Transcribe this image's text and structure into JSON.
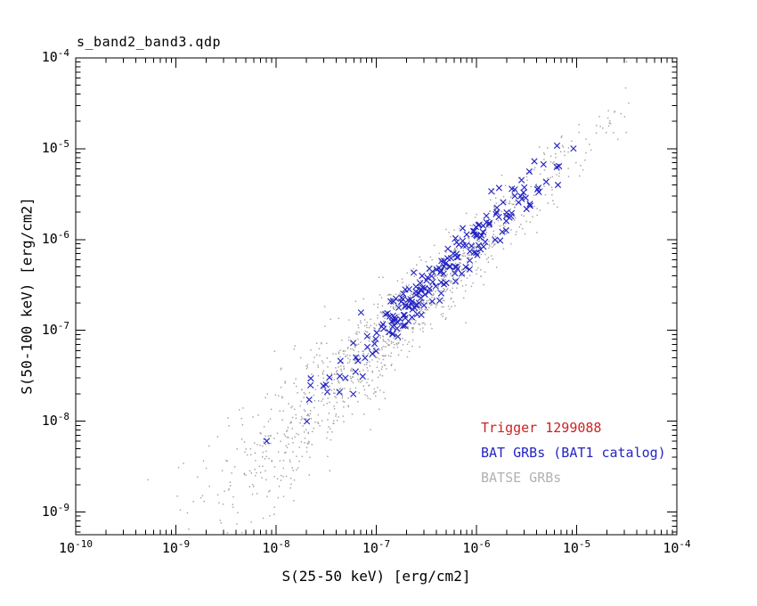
{
  "chart_data": {
    "type": "scatter",
    "title": "s_band2_band3.qdp",
    "xlabel": "S(25-50 keV) [erg/cm2]",
    "ylabel": "S(50-100 keV) [erg/cm2]",
    "x_scale": "log",
    "y_scale": "log",
    "xlim_log": [
      -10,
      -4
    ],
    "ylim_log": [
      -9.25,
      -4
    ],
    "x_ticks_exp": [
      -10,
      -9,
      -8,
      -7,
      -6,
      -5,
      -4
    ],
    "y_ticks_exp": [
      -4,
      -5,
      -6,
      -7,
      -8,
      -9
    ],
    "grid": false,
    "frame_color": "#000000",
    "legend_position": "lower-right-inside",
    "legend": [
      {
        "label": "Trigger 1299088",
        "color": "#cc2222"
      },
      {
        "label": "BAT GRBs (BAT1 catalog)",
        "color": "#2525c4"
      },
      {
        "label": "BATSE GRBs",
        "color": "#b2b2b2"
      }
    ],
    "series": [
      {
        "name": "BATSE GRBs",
        "marker": "dot",
        "color": "#a3a3a3",
        "count": 1250,
        "seed": 20481,
        "logx_center": -6.85,
        "logx_sd": 0.95,
        "logx_min": -9.6,
        "logx_max": -4.4,
        "trend_pivot_x": -6.6,
        "trend_pivot_y": -6.72,
        "trend_slope": 1.07,
        "scatter": 0.21,
        "scatter_grow": 0.11,
        "scatter_ref": -6.5
      },
      {
        "name": "BAT GRBs (BAT1 catalog)",
        "marker": "x",
        "color": "#2525c4",
        "count": 215,
        "seed": 9157,
        "logx_center": -6.3,
        "logx_sd": 0.58,
        "logx_min": -8.45,
        "logx_max": -5.0,
        "trend_pivot_x": -6.6,
        "trend_pivot_y": -6.65,
        "trend_slope": 1.07,
        "scatter": 0.13,
        "scatter_grow": 0.07,
        "scatter_ref": -7.0
      }
    ]
  }
}
